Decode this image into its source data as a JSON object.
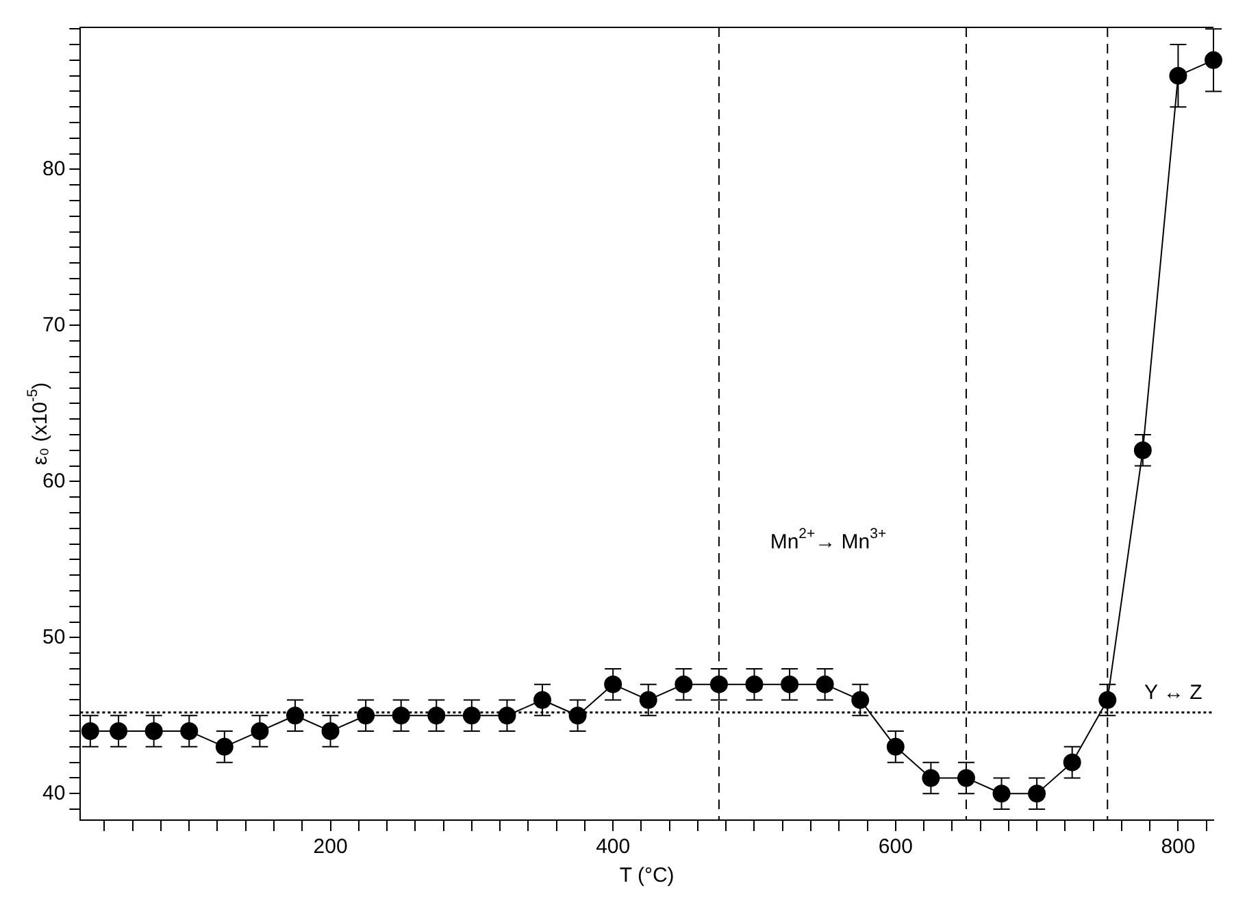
{
  "chart_data": {
    "type": "line",
    "xlabel": "T (°C)",
    "ylabel": "ε₀ (x10$^{-5}$)",
    "x": [
      30,
      50,
      75,
      100,
      125,
      150,
      175,
      200,
      225,
      250,
      275,
      300,
      325,
      350,
      375,
      400,
      425,
      450,
      475,
      500,
      525,
      550,
      575,
      600,
      625,
      650,
      675,
      700,
      725,
      750,
      775,
      800,
      825
    ],
    "series": [
      {
        "color": "#000000",
        "values": [
          44,
          44,
          44,
          44,
          43,
          44,
          45,
          44,
          45,
          45,
          45,
          45,
          45,
          46,
          45,
          47,
          46,
          47,
          47,
          47,
          47,
          47,
          46,
          43,
          41,
          41,
          40,
          40,
          42,
          46,
          62,
          86,
          87
        ],
        "errors": [
          1,
          1,
          1,
          1,
          1,
          1,
          1,
          1,
          1,
          1,
          1,
          1,
          1,
          1,
          1,
          1,
          1,
          1,
          1,
          1,
          1,
          1,
          1,
          1,
          1,
          1,
          1,
          1,
          1,
          1,
          1,
          2,
          2
        ]
      }
    ],
    "xlim": [
      23,
      825
    ],
    "ylim": [
      38.3,
      89.1
    ],
    "xticks": [
      {
        "value": 40,
        "label": null
      },
      {
        "value": 60,
        "label": null
      },
      {
        "value": 80,
        "label": null
      },
      {
        "value": 100,
        "label": null
      },
      {
        "value": 120,
        "label": null
      },
      {
        "value": 140,
        "label": null
      },
      {
        "value": 160,
        "label": null
      },
      {
        "value": 180,
        "label": null
      },
      200,
      {
        "value": 220,
        "label": null
      },
      {
        "value": 240,
        "label": null
      },
      {
        "value": 260,
        "label": null
      },
      {
        "value": 280,
        "label": null
      },
      {
        "value": 300,
        "label": null
      },
      {
        "value": 320,
        "label": null
      },
      {
        "value": 340,
        "label": null
      },
      {
        "value": 360,
        "label": null
      },
      {
        "value": 380,
        "label": null
      },
      400,
      {
        "value": 420,
        "label": null
      },
      {
        "value": 440,
        "label": null
      },
      {
        "value": 460,
        "label": null
      },
      {
        "value": 480,
        "label": null
      },
      {
        "value": 500,
        "label": null
      },
      {
        "value": 520,
        "label": null
      },
      {
        "value": 540,
        "label": null
      },
      {
        "value": 560,
        "label": null
      },
      {
        "value": 580,
        "label": null
      },
      600,
      {
        "value": 620,
        "label": null
      },
      {
        "value": 640,
        "label": null
      },
      {
        "value": 660,
        "label": null
      },
      {
        "value": 680,
        "label": null
      },
      {
        "value": 700,
        "label": null
      },
      {
        "value": 720,
        "label": null
      },
      {
        "value": 740,
        "label": null
      },
      {
        "value": 760,
        "label": null
      },
      {
        "value": 780,
        "label": null
      },
      800,
      {
        "value": 820,
        "label": null
      }
    ],
    "yticks": [
      {
        "value": 39,
        "label": null
      },
      40,
      {
        "value": 41,
        "label": null
      },
      {
        "value": 42,
        "label": null
      },
      {
        "value": 43,
        "label": null
      },
      {
        "value": 44,
        "label": null
      },
      {
        "value": 45,
        "label": null
      },
      {
        "value": 46,
        "label": null
      },
      {
        "value": 47,
        "label": null
      },
      {
        "value": 48,
        "label": null
      },
      {
        "value": 49,
        "label": null
      },
      50,
      {
        "value": 51,
        "label": null
      },
      {
        "value": 52,
        "label": null
      },
      {
        "value": 53,
        "label": null
      },
      {
        "value": 54,
        "label": null
      },
      {
        "value": 55,
        "label": null
      },
      {
        "value": 56,
        "label": null
      },
      {
        "value": 57,
        "label": null
      },
      {
        "value": 58,
        "label": null
      },
      {
        "value": 59,
        "label": null
      },
      60,
      {
        "value": 61,
        "label": null
      },
      {
        "value": 62,
        "label": null
      },
      {
        "value": 63,
        "label": null
      },
      {
        "value": 64,
        "label": null
      },
      {
        "value": 65,
        "label": null
      },
      {
        "value": 66,
        "label": null
      },
      {
        "value": 67,
        "label": null
      },
      {
        "value": 68,
        "label": null
      },
      {
        "value": 69,
        "label": null
      },
      70,
      {
        "value": 71,
        "label": null
      },
      {
        "value": 72,
        "label": null
      },
      {
        "value": 73,
        "label": null
      },
      {
        "value": 74,
        "label": null
      },
      {
        "value": 75,
        "label": null
      },
      {
        "value": 76,
        "label": null
      },
      {
        "value": 77,
        "label": null
      },
      {
        "value": 78,
        "label": null
      },
      {
        "value": 79,
        "label": null
      },
      80,
      {
        "value": 81,
        "label": null
      },
      {
        "value": 82,
        "label": null
      },
      {
        "value": 83,
        "label": null
      },
      {
        "value": 84,
        "label": null
      },
      {
        "value": 85,
        "label": null
      },
      {
        "value": 86,
        "label": null
      },
      {
        "value": 87,
        "label": null
      },
      {
        "value": 88,
        "label": null
      },
      {
        "value": 89,
        "label": null
      }
    ],
    "ref_lines": [
      {
        "axis": "x",
        "value": 475,
        "line_style": "dashed"
      },
      {
        "axis": "x",
        "value": 650,
        "line_style": "dashed"
      },
      {
        "axis": "x",
        "value": 750,
        "line_style": "dashed"
      },
      {
        "axis": "y",
        "value": 45.2,
        "label": "Y ↔ Z",
        "line_style": "dotted"
      }
    ],
    "annotations": [
      "Mn$^{2+}$→ Mn$^{3+}$"
    ],
    "marker": "circle",
    "line_style": "solid",
    "grid": false,
    "legend": false
  }
}
